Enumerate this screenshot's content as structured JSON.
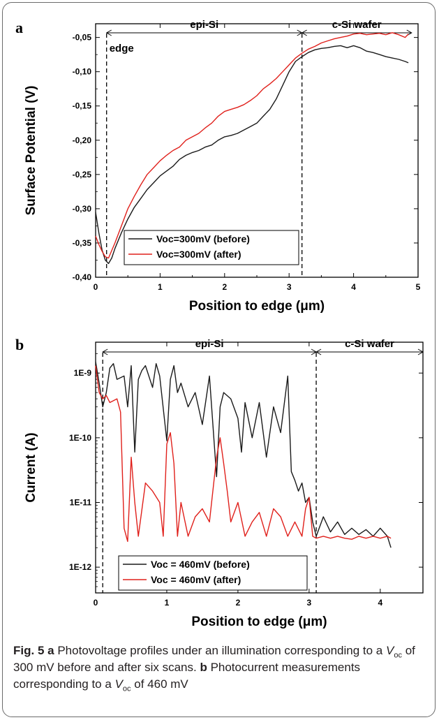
{
  "chart_data": [
    {
      "type": "line",
      "panel_label": "a",
      "xlabel": "Position to edge (μm)",
      "ylabel": "Surface Potential (V)",
      "xlim": [
        0,
        5
      ],
      "ylim": [
        -0.4,
        -0.03
      ],
      "xticks": [
        "0",
        "1",
        "2",
        "3",
        "4",
        "5"
      ],
      "yticks": [
        "-0,05",
        "-0,10",
        "-0,15",
        "-0,20",
        "-0,25",
        "-0,30",
        "-0,35",
        "-0,40"
      ],
      "legend_position": "bottom-left",
      "regions": [
        {
          "label": "epi-Si",
          "from": 0.17,
          "to": 3.2
        },
        {
          "label": "c-Si wafer",
          "from": 3.2,
          "to": 4.9
        }
      ],
      "annotations": [
        {
          "text": "edge",
          "x": 0.17
        }
      ],
      "series": [
        {
          "name": "Voc=300mV (before)",
          "color": "#1a1a1a",
          "x": [
            0,
            0.05,
            0.1,
            0.15,
            0.2,
            0.25,
            0.3,
            0.4,
            0.5,
            0.6,
            0.7,
            0.8,
            0.9,
            1.0,
            1.1,
            1.2,
            1.3,
            1.4,
            1.5,
            1.6,
            1.7,
            1.8,
            1.9,
            2.0,
            2.1,
            2.2,
            2.3,
            2.4,
            2.5,
            2.6,
            2.7,
            2.8,
            2.9,
            3.0,
            3.1,
            3.2,
            3.3,
            3.4,
            3.5,
            3.6,
            3.7,
            3.8,
            3.9,
            4.0,
            4.1,
            4.2,
            4.3,
            4.4,
            4.5,
            4.6,
            4.7,
            4.8,
            4.85
          ],
          "y": [
            -0.305,
            -0.335,
            -0.36,
            -0.375,
            -0.38,
            -0.372,
            -0.358,
            -0.335,
            -0.315,
            -0.298,
            -0.285,
            -0.272,
            -0.262,
            -0.252,
            -0.245,
            -0.238,
            -0.228,
            -0.222,
            -0.218,
            -0.215,
            -0.21,
            -0.207,
            -0.2,
            -0.195,
            -0.193,
            -0.19,
            -0.185,
            -0.18,
            -0.175,
            -0.165,
            -0.155,
            -0.14,
            -0.12,
            -0.1,
            -0.085,
            -0.078,
            -0.072,
            -0.068,
            -0.066,
            -0.065,
            -0.063,
            -0.062,
            -0.065,
            -0.062,
            -0.065,
            -0.07,
            -0.072,
            -0.075,
            -0.078,
            -0.08,
            -0.082,
            -0.085,
            -0.087
          ]
        },
        {
          "name": "Voc=300mV (after)",
          "color": "#e0201b",
          "x": [
            0,
            0.05,
            0.1,
            0.15,
            0.2,
            0.3,
            0.4,
            0.5,
            0.6,
            0.7,
            0.8,
            0.9,
            1.0,
            1.1,
            1.2,
            1.3,
            1.4,
            1.5,
            1.6,
            1.7,
            1.8,
            1.9,
            2.0,
            2.1,
            2.2,
            2.3,
            2.4,
            2.5,
            2.6,
            2.7,
            2.8,
            2.9,
            3.0,
            3.1,
            3.2,
            3.3,
            3.4,
            3.5,
            3.6,
            3.7,
            3.8,
            3.9,
            4.0,
            4.1,
            4.2,
            4.3,
            4.4,
            4.5,
            4.6,
            4.7,
            4.8,
            4.85
          ],
          "y": [
            -0.34,
            -0.352,
            -0.362,
            -0.37,
            -0.372,
            -0.35,
            -0.325,
            -0.3,
            -0.282,
            -0.265,
            -0.25,
            -0.24,
            -0.23,
            -0.222,
            -0.215,
            -0.21,
            -0.2,
            -0.195,
            -0.19,
            -0.182,
            -0.175,
            -0.165,
            -0.158,
            -0.155,
            -0.152,
            -0.148,
            -0.142,
            -0.135,
            -0.125,
            -0.118,
            -0.11,
            -0.1,
            -0.09,
            -0.08,
            -0.073,
            -0.067,
            -0.063,
            -0.058,
            -0.055,
            -0.052,
            -0.05,
            -0.048,
            -0.045,
            -0.044,
            -0.046,
            -0.045,
            -0.044,
            -0.046,
            -0.043,
            -0.046,
            -0.05,
            -0.045
          ]
        }
      ]
    },
    {
      "type": "line",
      "panel_label": "b",
      "xlabel": "Position to edge (μm)",
      "ylabel": "Current (A)",
      "xlim": [
        0,
        4.6
      ],
      "ylim": [
        4e-13,
        3e-09
      ],
      "yscale": "log",
      "xticks": [
        "0",
        "1",
        "2",
        "3",
        "4"
      ],
      "yticks": [
        "1E-9",
        "1E-10",
        "1E-11",
        "1E-12"
      ],
      "legend_position": "bottom-left",
      "regions": [
        {
          "label": "epi-Si",
          "from": 0.1,
          "to": 3.1
        },
        {
          "label": "c-Si wafer",
          "from": 3.1,
          "to": 4.6
        }
      ],
      "series": [
        {
          "name": "Voc = 460mV (before)",
          "color": "#1a1a1a",
          "x": [
            0,
            0.05,
            0.1,
            0.15,
            0.2,
            0.25,
            0.3,
            0.4,
            0.45,
            0.5,
            0.55,
            0.6,
            0.65,
            0.7,
            0.8,
            0.85,
            0.9,
            1.0,
            1.05,
            1.1,
            1.15,
            1.2,
            1.3,
            1.4,
            1.5,
            1.6,
            1.7,
            1.75,
            1.8,
            1.9,
            2.0,
            2.05,
            2.1,
            2.2,
            2.3,
            2.4,
            2.5,
            2.6,
            2.7,
            2.75,
            2.8,
            2.85,
            2.9,
            2.95,
            3.0,
            3.05,
            3.1,
            3.2,
            3.3,
            3.4,
            3.5,
            3.6,
            3.7,
            3.8,
            3.9,
            4.0,
            4.1,
            4.15
          ],
          "y": [
            1.5e-09,
            7e-10,
            3e-10,
            5e-10,
            1.2e-09,
            1.4e-09,
            8e-10,
            9e-10,
            3e-10,
            1.3e-09,
            6e-11,
            8e-10,
            1.1e-09,
            1.3e-09,
            6e-10,
            1.4e-09,
            9e-10,
            9e-11,
            8e-10,
            1.3e-09,
            5e-10,
            7e-10,
            3e-10,
            5e-10,
            1.6e-10,
            9e-10,
            2.5e-11,
            3e-10,
            5e-10,
            4e-10,
            2e-10,
            6e-11,
            3.5e-10,
            1e-10,
            3.5e-10,
            5e-11,
            3e-10,
            1.2e-10,
            9e-10,
            3e-11,
            2.2e-11,
            1.5e-11,
            2e-11,
            1e-11,
            1.2e-11,
            5e-12,
            3e-12,
            6e-12,
            3.5e-12,
            5e-12,
            3.2e-12,
            4e-12,
            3.2e-12,
            3.8e-12,
            3e-12,
            4e-12,
            3e-12,
            2e-12
          ]
        },
        {
          "name": "Voc = 460mV (after)",
          "color": "#e0201b",
          "x": [
            0,
            0.05,
            0.1,
            0.15,
            0.2,
            0.3,
            0.35,
            0.4,
            0.45,
            0.5,
            0.55,
            0.6,
            0.7,
            0.8,
            0.9,
            0.95,
            1.0,
            1.05,
            1.1,
            1.15,
            1.2,
            1.3,
            1.4,
            1.5,
            1.6,
            1.7,
            1.75,
            1.8,
            1.85,
            1.9,
            2.0,
            2.1,
            2.2,
            2.3,
            2.4,
            2.5,
            2.6,
            2.7,
            2.8,
            2.9,
            2.95,
            3.0,
            3.05,
            3.1,
            3.2,
            3.3,
            3.4,
            3.5,
            3.6,
            3.7,
            3.8,
            3.9,
            4.0,
            4.1,
            4.15
          ],
          "y": [
            1.3e-09,
            5e-10,
            4e-10,
            4.5e-10,
            3.5e-10,
            4e-10,
            2.5e-10,
            4e-12,
            2.5e-12,
            5e-11,
            1e-11,
            3e-12,
            2e-11,
            1.5e-11,
            1e-11,
            3e-12,
            8e-11,
            1.2e-10,
            4e-11,
            3e-12,
            1e-11,
            3e-12,
            6e-12,
            8e-12,
            5e-12,
            5e-11,
            1e-10,
            4e-11,
            1.5e-11,
            5e-12,
            1e-11,
            3e-12,
            5e-12,
            7e-12,
            3e-12,
            8e-12,
            6e-12,
            3e-12,
            5e-12,
            3e-12,
            8e-12,
            1.2e-11,
            3e-12,
            2.8e-12,
            3e-12,
            2.8e-12,
            3e-12,
            2.8e-12,
            2.7e-12,
            3e-12,
            2.8e-12,
            3e-12,
            2.8e-12,
            3e-12,
            2.8e-12
          ]
        }
      ]
    }
  ],
  "caption": {
    "fig_label": "Fig. 5",
    "a_label": "a",
    "a_text_1": "Photovoltage profiles under an illumination corresponding to a",
    "voc_v": "V",
    "voc_sub": "oc",
    "a_text_2": "of 300 mV before and after six scans.",
    "b_label": "b",
    "b_text_1": "Photocurrent measurements corresponding to a",
    "b_text_2": "of 460 mV"
  }
}
